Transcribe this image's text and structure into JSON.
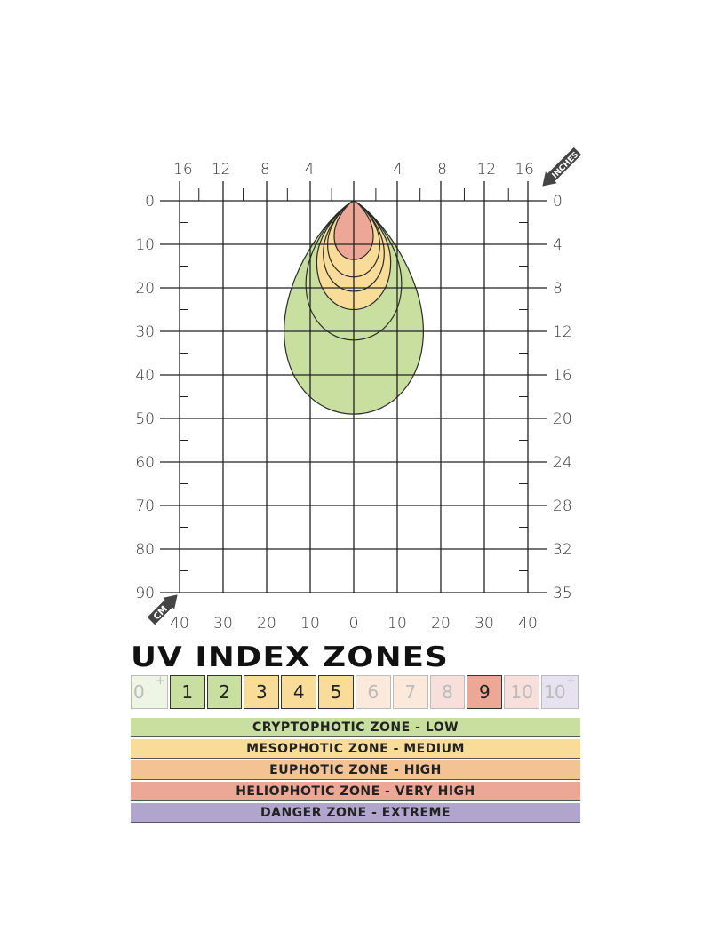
{
  "chart_data": {
    "type": "contour",
    "left_axis": {
      "unit_label": "CM",
      "ticks": [
        0,
        10,
        20,
        30,
        40,
        50,
        60,
        70,
        80,
        90
      ]
    },
    "right_axis": {
      "unit_label": "INCHES",
      "ticks": [
        0,
        4,
        8,
        12,
        16,
        20,
        24,
        28,
        32,
        35
      ]
    },
    "top_axis": {
      "ticks": [
        "16",
        "12",
        "8",
        "4",
        "",
        "4",
        "8",
        "12",
        "16"
      ]
    },
    "bottom_axis": {
      "ticks": [
        "40",
        "30",
        "20",
        "10",
        "0",
        "10",
        "20",
        "30",
        "40"
      ]
    },
    "grid": true,
    "contours_cm": [
      {
        "uv": 1,
        "depth": 49,
        "half_width": 16,
        "widest_at": 30,
        "color": "#c8dfa0"
      },
      {
        "uv": 2,
        "depth": 32,
        "half_width": 11,
        "widest_at": 19,
        "color": "#c8dfa0"
      },
      {
        "uv": 3,
        "depth": 25,
        "half_width": 8.5,
        "widest_at": 14,
        "color": "#f8dc98"
      },
      {
        "uv": 4,
        "depth": 20.8,
        "half_width": 7,
        "widest_at": 12,
        "color": "#f8dc98"
      },
      {
        "uv": 5,
        "depth": 17.5,
        "half_width": 6,
        "widest_at": 10,
        "color": "#f8dc98"
      },
      {
        "uv": 9,
        "depth": 13.5,
        "half_width": 4.5,
        "widest_at": 8,
        "color": "#eda796"
      }
    ]
  },
  "legend": {
    "title": "UV INDEX ZONES",
    "boxes": [
      {
        "label": "0",
        "sup": "+",
        "active": false,
        "color": "#eef5e4"
      },
      {
        "label": "1",
        "active": true,
        "color": "#c8dfa0"
      },
      {
        "label": "2",
        "active": true,
        "color": "#c8dfa0"
      },
      {
        "label": "3",
        "active": true,
        "color": "#f8dc98"
      },
      {
        "label": "4",
        "active": true,
        "color": "#f8dc98"
      },
      {
        "label": "5",
        "active": true,
        "color": "#f8dc98"
      },
      {
        "label": "6",
        "active": false,
        "color": "#fbe9dc"
      },
      {
        "label": "7",
        "active": false,
        "color": "#fbe9dc"
      },
      {
        "label": "8",
        "active": false,
        "color": "#f7e0dc"
      },
      {
        "label": "9",
        "active": true,
        "color": "#eda796"
      },
      {
        "label": "10",
        "active": false,
        "color": "#f7e0dc"
      },
      {
        "label": "10",
        "sup": "+",
        "active": false,
        "color": "#e6e2ef"
      }
    ],
    "zones": [
      {
        "label": "CRYPTOPHOTIC ZONE - LOW",
        "color": "#c8dfa0"
      },
      {
        "label": "MESOPHOTIC ZONE - MEDIUM",
        "color": "#f8dc98"
      },
      {
        "label": "EUPHOTIC ZONE - HIGH",
        "color": "#f3c394"
      },
      {
        "label": "HELIOPHOTIC ZONE - VERY HIGH",
        "color": "#eda796"
      },
      {
        "label": "DANGER ZONE - EXTREME",
        "color": "#b0a5cc"
      }
    ]
  }
}
